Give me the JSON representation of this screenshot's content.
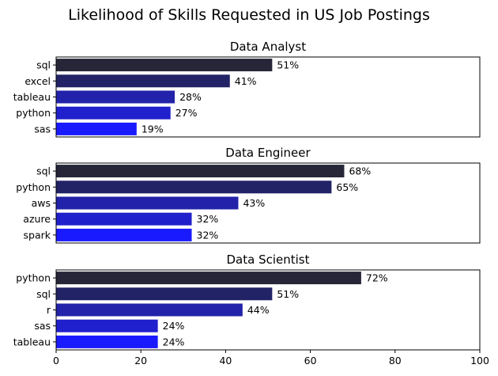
{
  "chart_data": {
    "type": "bar",
    "orientation": "horizontal",
    "title": "Likelihood of Skills Requested in US Job Postings",
    "xlim": [
      0,
      100
    ],
    "x_ticks": [
      "0",
      "20",
      "40",
      "60",
      "80",
      "100"
    ],
    "grid": false,
    "colors": [
      "#262638",
      "#222266",
      "#2222aa",
      "#2020cc",
      "#1a1aff"
    ],
    "panels": [
      {
        "title": "Data Analyst",
        "categories": [
          "sql",
          "excel",
          "tableau",
          "python",
          "sas"
        ],
        "values": [
          51,
          41,
          28,
          27,
          19
        ],
        "labels": [
          "51%",
          "41%",
          "28%",
          "27%",
          "19%"
        ]
      },
      {
        "title": "Data Engineer",
        "categories": [
          "sql",
          "python",
          "aws",
          "azure",
          "spark"
        ],
        "values": [
          68,
          65,
          43,
          32,
          32
        ],
        "labels": [
          "68%",
          "65%",
          "43%",
          "32%",
          "32%"
        ]
      },
      {
        "title": "Data Scientist",
        "categories": [
          "python",
          "sql",
          "r",
          "sas",
          "tableau"
        ],
        "values": [
          72,
          51,
          44,
          24,
          24
        ],
        "labels": [
          "72%",
          "51%",
          "44%",
          "24%",
          "24%"
        ]
      }
    ]
  }
}
